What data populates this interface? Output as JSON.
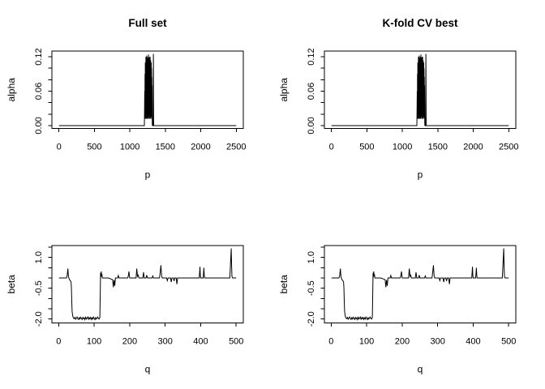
{
  "figure": {
    "background_color": "#ffffff",
    "line_color": "#000000",
    "text_color": "#000000"
  },
  "chart_data": {
    "layout": {
      "grid": "2x2",
      "column_titles": [
        "Full set",
        "K-fold CV best"
      ],
      "note": "Both columns display identical coefficient profiles: top row alpha vs p, bottom row beta vs q; black line plots in R style, grid off, no legend"
    },
    "series": {
      "alpha": [
        [
          1,
          0
        ],
        [
          1205,
          0
        ],
        [
          1210,
          0.06
        ],
        [
          1212,
          0.012
        ],
        [
          1214,
          0.09
        ],
        [
          1216,
          0.02
        ],
        [
          1218,
          0.11
        ],
        [
          1220,
          0.012
        ],
        [
          1222,
          0.104
        ],
        [
          1224,
          0.03
        ],
        [
          1226,
          0.12
        ],
        [
          1228,
          0.02
        ],
        [
          1230,
          0.114
        ],
        [
          1232,
          0.012
        ],
        [
          1234,
          0.1
        ],
        [
          1236,
          0.04
        ],
        [
          1238,
          0.122
        ],
        [
          1240,
          0.02
        ],
        [
          1242,
          0.11
        ],
        [
          1244,
          0.012
        ],
        [
          1246,
          0.118
        ],
        [
          1248,
          0.03
        ],
        [
          1250,
          0.104
        ],
        [
          1252,
          0.02
        ],
        [
          1254,
          0.12
        ],
        [
          1256,
          0.012
        ],
        [
          1258,
          0.11
        ],
        [
          1260,
          0.035
        ],
        [
          1262,
          0.124
        ],
        [
          1264,
          0.015
        ],
        [
          1266,
          0.108
        ],
        [
          1268,
          0.02
        ],
        [
          1270,
          0.118
        ],
        [
          1272,
          0.012
        ],
        [
          1274,
          0.1
        ],
        [
          1276,
          0.03
        ],
        [
          1278,
          0.12
        ],
        [
          1280,
          0.02
        ],
        [
          1282,
          0.112
        ],
        [
          1284,
          0.012
        ],
        [
          1286,
          0.12
        ],
        [
          1288,
          0.04
        ],
        [
          1290,
          0.104
        ],
        [
          1292,
          0.02
        ],
        [
          1294,
          0.114
        ],
        [
          1296,
          0.012
        ],
        [
          1298,
          0.095
        ],
        [
          1300,
          0.03
        ],
        [
          1302,
          0.11
        ],
        [
          1304,
          0.015
        ],
        [
          1306,
          0.1
        ],
        [
          1308,
          0.02
        ],
        [
          1310,
          0.085
        ],
        [
          1312,
          0.012
        ],
        [
          1314,
          0.07
        ],
        [
          1316,
          0.005
        ],
        [
          1318,
          0
        ],
        [
          1328,
          0
        ],
        [
          1332,
          0.125
        ],
        [
          1336,
          0
        ],
        [
          2500,
          0
        ]
      ],
      "beta": [
        [
          1,
          0
        ],
        [
          22,
          0
        ],
        [
          24,
          0.12
        ],
        [
          26,
          0.46
        ],
        [
          27,
          0.2
        ],
        [
          28,
          0.04
        ],
        [
          30,
          -0.06
        ],
        [
          32,
          -0.12
        ],
        [
          34,
          -0.16
        ],
        [
          35,
          -0.2
        ],
        [
          36,
          -0.5
        ],
        [
          37,
          -1.2
        ],
        [
          38,
          -1.65
        ],
        [
          40,
          -1.88
        ],
        [
          42,
          -1.95
        ],
        [
          44,
          -1.98
        ],
        [
          46,
          -1.92
        ],
        [
          48,
          -2.01
        ],
        [
          50,
          -1.95
        ],
        [
          52,
          -1.9
        ],
        [
          54,
          -1.98
        ],
        [
          56,
          -2.02
        ],
        [
          58,
          -1.93
        ],
        [
          60,
          -2.0
        ],
        [
          62,
          -1.91
        ],
        [
          64,
          -1.97
        ],
        [
          66,
          -2.02
        ],
        [
          68,
          -1.92
        ],
        [
          70,
          -1.99
        ],
        [
          72,
          -1.94
        ],
        [
          74,
          -2.03
        ],
        [
          76,
          -1.91
        ],
        [
          78,
          -2.0
        ],
        [
          80,
          -1.95
        ],
        [
          82,
          -1.9
        ],
        [
          84,
          -2.01
        ],
        [
          86,
          -1.93
        ],
        [
          88,
          -1.99
        ],
        [
          90,
          -1.92
        ],
        [
          92,
          -2.02
        ],
        [
          94,
          -1.94
        ],
        [
          96,
          -2.0
        ],
        [
          98,
          -1.9
        ],
        [
          100,
          -1.97
        ],
        [
          102,
          -2.03
        ],
        [
          104,
          -1.93
        ],
        [
          106,
          -2.0
        ],
        [
          108,
          -1.95
        ],
        [
          110,
          -1.9
        ],
        [
          112,
          -1.97
        ],
        [
          114,
          -2.0
        ],
        [
          116,
          -1.93
        ],
        [
          117,
          -0.9
        ],
        [
          118,
          0.25
        ],
        [
          119,
          0.05
        ],
        [
          120,
          0.32
        ],
        [
          121,
          0.08
        ],
        [
          122,
          0.18
        ],
        [
          123,
          0
        ],
        [
          140,
          0
        ],
        [
          152,
          -0.08
        ],
        [
          154,
          -0.45
        ],
        [
          156,
          -0.1
        ],
        [
          158,
          -0.38
        ],
        [
          160,
          0
        ],
        [
          166,
          0
        ],
        [
          168,
          0.12
        ],
        [
          170,
          0
        ],
        [
          194,
          0
        ],
        [
          196,
          0.08
        ],
        [
          198,
          0.32
        ],
        [
          200,
          0
        ],
        [
          218,
          0
        ],
        [
          220,
          0.46
        ],
        [
          222,
          0.08
        ],
        [
          224,
          0.14
        ],
        [
          226,
          0
        ],
        [
          237,
          0
        ],
        [
          239,
          0.28
        ],
        [
          241,
          0
        ],
        [
          246,
          0
        ],
        [
          248,
          0.14
        ],
        [
          250,
          0
        ],
        [
          263,
          0
        ],
        [
          265,
          0.1
        ],
        [
          267,
          0
        ],
        [
          284,
          0
        ],
        [
          286,
          0.28
        ],
        [
          288,
          0.62
        ],
        [
          290,
          0.1
        ],
        [
          292,
          0
        ],
        [
          304,
          0
        ],
        [
          306,
          -0.13
        ],
        [
          308,
          0
        ],
        [
          315,
          0
        ],
        [
          317,
          -0.2
        ],
        [
          319,
          0
        ],
        [
          323,
          0
        ],
        [
          325,
          -0.15
        ],
        [
          327,
          0
        ],
        [
          331,
          0
        ],
        [
          333,
          -0.3
        ],
        [
          335,
          0
        ],
        [
          396,
          0
        ],
        [
          398,
          0.55
        ],
        [
          399,
          0.12
        ],
        [
          400,
          0
        ],
        [
          407,
          0
        ],
        [
          409,
          0.5
        ],
        [
          410,
          0.14
        ],
        [
          411,
          0
        ],
        [
          482,
          0
        ],
        [
          484,
          0.7
        ],
        [
          486,
          1.44
        ],
        [
          487,
          0.65
        ],
        [
          488,
          0.08
        ],
        [
          490,
          0
        ],
        [
          500,
          0
        ]
      ]
    },
    "charts": [
      {
        "id": "alpha-full",
        "type": "line",
        "title": "Full set",
        "xlabel": "p",
        "ylabel": "alpha",
        "xlim": [
          -99,
          2600
        ],
        "ylim": [
          -0.005,
          0.13
        ],
        "xticks": {
          "values": [
            0,
            500,
            1000,
            1500,
            2000,
            2500
          ],
          "labels": [
            "0",
            "500",
            "1000",
            "1500",
            "2000",
            "2500"
          ]
        },
        "yticks": {
          "values": [
            0,
            0.02,
            0.04,
            0.06,
            0.08,
            0.1,
            0.12
          ],
          "labels": [
            "0.00",
            "",
            "",
            "0.06",
            "",
            "",
            "0.12"
          ]
        },
        "series_key": "alpha",
        "grid": false,
        "legend": null
      },
      {
        "id": "alpha-cv",
        "type": "line",
        "title": "K-fold CV best",
        "xlabel": "p",
        "ylabel": "alpha",
        "xlim": [
          -99,
          2600
        ],
        "ylim": [
          -0.005,
          0.13
        ],
        "xticks": {
          "values": [
            0,
            500,
            1000,
            1500,
            2000,
            2500
          ],
          "labels": [
            "0",
            "500",
            "1000",
            "1500",
            "2000",
            "2500"
          ]
        },
        "yticks": {
          "values": [
            0,
            0.02,
            0.04,
            0.06,
            0.08,
            0.1,
            0.12
          ],
          "labels": [
            "0.00",
            "",
            "",
            "0.06",
            "",
            "",
            "0.12"
          ]
        },
        "series_key": "alpha",
        "grid": false,
        "legend": null
      },
      {
        "id": "beta-full",
        "type": "line",
        "title": "",
        "xlabel": "q",
        "ylabel": "beta",
        "xlim": [
          -19,
          520
        ],
        "ylim": [
          -2.19,
          1.58
        ],
        "xticks": {
          "values": [
            0,
            100,
            200,
            300,
            400,
            500
          ],
          "labels": [
            "0",
            "100",
            "200",
            "300",
            "400",
            "500"
          ]
        },
        "yticks": {
          "values": [
            -2,
            -1.5,
            -1,
            -0.5,
            0,
            0.5,
            1,
            1.5
          ],
          "labels": [
            "-2.0",
            "",
            "",
            "-0.5",
            "",
            "",
            "1.0",
            ""
          ]
        },
        "series_key": "beta",
        "grid": false,
        "legend": null
      },
      {
        "id": "beta-cv",
        "type": "line",
        "title": "",
        "xlabel": "q",
        "ylabel": "beta",
        "xlim": [
          -19,
          520
        ],
        "ylim": [
          -2.19,
          1.58
        ],
        "xticks": {
          "values": [
            0,
            100,
            200,
            300,
            400,
            500
          ],
          "labels": [
            "0",
            "100",
            "200",
            "300",
            "400",
            "500"
          ]
        },
        "yticks": {
          "values": [
            -2,
            -1.5,
            -1,
            -0.5,
            0,
            0.5,
            1,
            1.5
          ],
          "labels": [
            "-2.0",
            "",
            "",
            "-0.5",
            "",
            "",
            "1.0",
            ""
          ]
        },
        "series_key": "beta",
        "grid": false,
        "legend": null
      }
    ]
  }
}
